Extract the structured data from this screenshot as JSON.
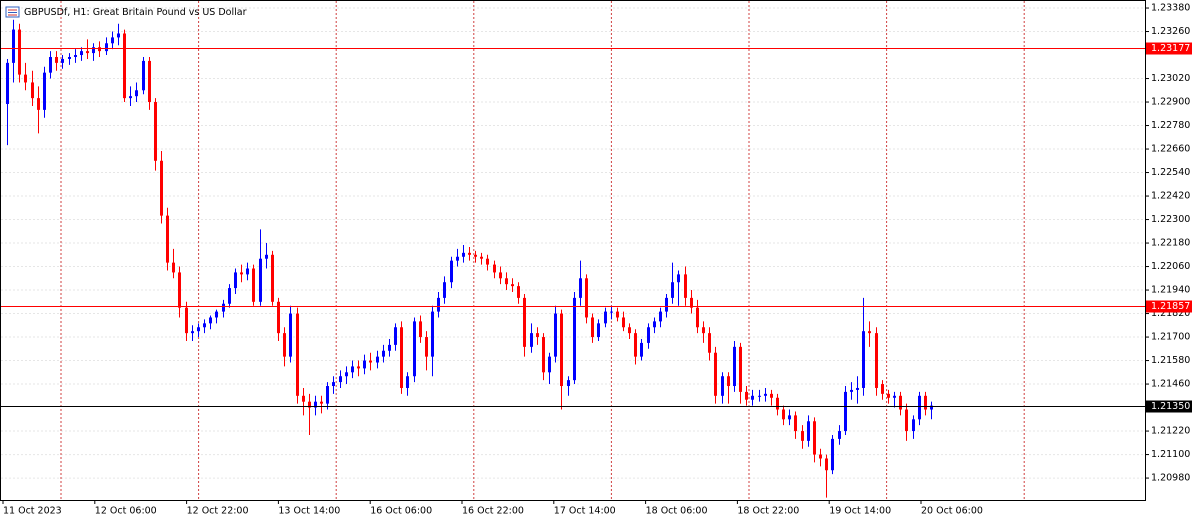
{
  "chart_data": {
    "type": "candlestick",
    "title": "GBPUSDf, H1:  Great Britain Pound vs US Dollar",
    "up_color": "#0000ff",
    "down_color": "#ff0000",
    "ylim": [
      1.20868,
      1.23421
    ],
    "yticks": [
      {
        "value": 1.2338,
        "label": "1.23380"
      },
      {
        "value": 1.2326,
        "label": "1.23260"
      },
      {
        "value": 1.2302,
        "label": "1.23020"
      },
      {
        "value": 1.229,
        "label": "1.22900"
      },
      {
        "value": 1.2278,
        "label": "1.22780"
      },
      {
        "value": 1.2266,
        "label": "1.22660"
      },
      {
        "value": 1.2254,
        "label": "1.22540"
      },
      {
        "value": 1.2242,
        "label": "1.22420"
      },
      {
        "value": 1.223,
        "label": "1.22300"
      },
      {
        "value": 1.2218,
        "label": "1.22180"
      },
      {
        "value": 1.2206,
        "label": "1.22060"
      },
      {
        "value": 1.2194,
        "label": "1.21940"
      },
      {
        "value": 1.2182,
        "label": "1.21820"
      },
      {
        "value": 1.217,
        "label": "1.21700"
      },
      {
        "value": 1.2158,
        "label": "1.21580"
      },
      {
        "value": 1.2146,
        "label": "1.21460"
      },
      {
        "value": 1.2122,
        "label": "1.21220"
      },
      {
        "value": 1.211,
        "label": "1.21100"
      },
      {
        "value": 1.2098,
        "label": "1.20980"
      }
    ],
    "xticks": [
      "11 Oct 2023",
      "12 Oct 06:00",
      "12 Oct 22:00",
      "13 Oct 14:00",
      "16 Oct 06:00",
      "16 Oct 22:00",
      "17 Oct 14:00",
      "18 Oct 06:00",
      "18 Oct 22:00",
      "19 Oct 14:00",
      "20 Oct 06:00"
    ],
    "levels": [
      {
        "value": 1.23177,
        "label": "1.23177",
        "color": "#ff0000"
      },
      {
        "value": 1.21857,
        "label": "1.21857",
        "color": "#ff0000"
      },
      {
        "value": 1.2135,
        "label": "1.21350",
        "color": "#000000"
      }
    ],
    "ohlc": [
      [
        1.2289,
        1.2312,
        1.2268,
        1.231
      ],
      [
        1.231,
        1.2332,
        1.23,
        1.2327
      ],
      [
        1.2327,
        1.233,
        1.23,
        1.2304
      ],
      [
        1.2304,
        1.231,
        1.2296,
        1.23
      ],
      [
        1.23,
        1.2306,
        1.2288,
        1.2292
      ],
      [
        1.2292,
        1.2298,
        1.2274,
        1.2286
      ],
      [
        1.2286,
        1.2308,
        1.2282,
        1.2305
      ],
      [
        1.2305,
        1.2316,
        1.2302,
        1.2313
      ],
      [
        1.2313,
        1.2316,
        1.2306,
        1.231
      ],
      [
        1.231,
        1.2314,
        1.2307,
        1.2312
      ],
      [
        1.2312,
        1.2315,
        1.2309,
        1.2313
      ],
      [
        1.2313,
        1.2317,
        1.231,
        1.2314
      ],
      [
        1.2314,
        1.2318,
        1.2311,
        1.2316
      ],
      [
        1.2316,
        1.2322,
        1.2312,
        1.2315
      ],
      [
        1.2315,
        1.232,
        1.2311,
        1.2318
      ],
      [
        1.2318,
        1.2321,
        1.2313,
        1.2316
      ],
      [
        1.2316,
        1.2323,
        1.2314,
        1.232
      ],
      [
        1.232,
        1.2326,
        1.2317,
        1.2323
      ],
      [
        1.2323,
        1.233,
        1.2319,
        1.2325
      ],
      [
        1.2325,
        1.2327,
        1.229,
        1.2292
      ],
      [
        1.2292,
        1.2298,
        1.2288,
        1.2293
      ],
      [
        1.2293,
        1.23,
        1.229,
        1.2296
      ],
      [
        1.2296,
        1.2313,
        1.2294,
        1.2311
      ],
      [
        1.2311,
        1.2313,
        1.2286,
        1.229
      ],
      [
        1.229,
        1.2292,
        1.2255,
        1.226
      ],
      [
        1.226,
        1.2265,
        1.2228,
        1.2232
      ],
      [
        1.2232,
        1.2236,
        1.2204,
        1.2208
      ],
      [
        1.2208,
        1.2215,
        1.22,
        1.2203
      ],
      [
        1.2203,
        1.2206,
        1.218,
        1.2185
      ],
      [
        1.2185,
        1.2188,
        1.2168,
        1.2172
      ],
      [
        1.2172,
        1.2176,
        1.2168,
        1.2173
      ],
      [
        1.2173,
        1.2177,
        1.217,
        1.2175
      ],
      [
        1.2175,
        1.2179,
        1.2172,
        1.2177
      ],
      [
        1.2177,
        1.2181,
        1.2174,
        1.218
      ],
      [
        1.218,
        1.2184,
        1.2177,
        1.2183
      ],
      [
        1.2183,
        1.2189,
        1.218,
        1.2187
      ],
      [
        1.2187,
        1.2197,
        1.2185,
        1.2195
      ],
      [
        1.2195,
        1.2205,
        1.2192,
        1.2203
      ],
      [
        1.2203,
        1.2207,
        1.2198,
        1.2202
      ],
      [
        1.2202,
        1.2208,
        1.2199,
        1.2205
      ],
      [
        1.2205,
        1.2207,
        1.2186,
        1.2188
      ],
      [
        1.2188,
        1.2225,
        1.2186,
        1.221
      ],
      [
        1.221,
        1.2218,
        1.2205,
        1.2212
      ],
      [
        1.2212,
        1.2214,
        1.2186,
        1.2188
      ],
      [
        1.2188,
        1.219,
        1.2168,
        1.2172
      ],
      [
        1.2172,
        1.2175,
        1.2155,
        1.216
      ],
      [
        1.216,
        1.2186,
        1.2157,
        1.2182
      ],
      [
        1.2182,
        1.2185,
        1.2136,
        1.214
      ],
      [
        1.214,
        1.2144,
        1.213,
        1.2137
      ],
      [
        1.2137,
        1.2141,
        1.212,
        1.2134
      ],
      [
        1.2134,
        1.214,
        1.213,
        1.2137
      ],
      [
        1.2137,
        1.214,
        1.2131,
        1.2136
      ],
      [
        1.2136,
        1.2147,
        1.2133,
        1.2145
      ],
      [
        1.2145,
        1.215,
        1.2141,
        1.2147
      ],
      [
        1.2147,
        1.2153,
        1.2144,
        1.215
      ],
      [
        1.215,
        1.2155,
        1.2146,
        1.2152
      ],
      [
        1.2152,
        1.2158,
        1.2149,
        1.2155
      ],
      [
        1.2155,
        1.2158,
        1.215,
        1.2154
      ],
      [
        1.2154,
        1.2161,
        1.2151,
        1.2158
      ],
      [
        1.2158,
        1.2162,
        1.2153,
        1.2157
      ],
      [
        1.2157,
        1.2163,
        1.2154,
        1.216
      ],
      [
        1.216,
        1.2166,
        1.2157,
        1.2163
      ],
      [
        1.2163,
        1.2169,
        1.216,
        1.2166
      ],
      [
        1.2166,
        1.2177,
        1.2163,
        1.2175
      ],
      [
        1.2175,
        1.2178,
        1.2141,
        1.2144
      ],
      [
        1.2144,
        1.2152,
        1.214,
        1.215
      ],
      [
        1.215,
        1.218,
        1.2147,
        1.2178
      ],
      [
        1.2178,
        1.2181,
        1.2167,
        1.217
      ],
      [
        1.217,
        1.2173,
        1.2153,
        1.216
      ],
      [
        1.216,
        1.2186,
        1.215,
        1.2183
      ],
      [
        1.2183,
        1.2193,
        1.218,
        1.219
      ],
      [
        1.219,
        1.2201,
        1.2187,
        1.2198
      ],
      [
        1.2198,
        1.2211,
        1.2195,
        1.2209
      ],
      [
        1.2209,
        1.2215,
        1.2206,
        1.2211
      ],
      [
        1.2211,
        1.2217,
        1.2208,
        1.2213
      ],
      [
        1.2213,
        1.2216,
        1.2209,
        1.2212
      ],
      [
        1.2212,
        1.2214,
        1.2208,
        1.2211
      ],
      [
        1.2211,
        1.2213,
        1.2207,
        1.221
      ],
      [
        1.221,
        1.2212,
        1.2204,
        1.2207
      ],
      [
        1.2207,
        1.2209,
        1.22,
        1.2203
      ],
      [
        1.2203,
        1.2206,
        1.2197,
        1.22
      ],
      [
        1.22,
        1.2203,
        1.2194,
        1.2197
      ],
      [
        1.2197,
        1.22,
        1.2193,
        1.2196
      ],
      [
        1.2196,
        1.2198,
        1.2187,
        1.219
      ],
      [
        1.219,
        1.2192,
        1.216,
        1.2165
      ],
      [
        1.2165,
        1.2177,
        1.2162,
        1.2172
      ],
      [
        1.2172,
        1.2175,
        1.2166,
        1.217
      ],
      [
        1.217,
        1.2172,
        1.2148,
        1.2152
      ],
      [
        1.2152,
        1.2162,
        1.2146,
        1.216
      ],
      [
        1.216,
        1.2186,
        1.2157,
        1.2182
      ],
      [
        1.2182,
        1.2184,
        1.2133,
        1.2145
      ],
      [
        1.2145,
        1.215,
        1.214,
        1.2148
      ],
      [
        1.2148,
        1.2193,
        1.2146,
        1.219
      ],
      [
        1.219,
        1.2209,
        1.2186,
        1.22
      ],
      [
        1.22,
        1.2202,
        1.2177,
        1.218
      ],
      [
        1.218,
        1.2182,
        1.2167,
        1.217
      ],
      [
        1.217,
        1.2179,
        1.2168,
        1.2177
      ],
      [
        1.2177,
        1.2185,
        1.2175,
        1.2183
      ],
      [
        1.2183,
        1.2186,
        1.2179,
        1.2183
      ],
      [
        1.2183,
        1.2185,
        1.2178,
        1.218
      ],
      [
        1.218,
        1.2183,
        1.2173,
        1.2175
      ],
      [
        1.2175,
        1.2177,
        1.2169,
        1.2172
      ],
      [
        1.2172,
        1.2174,
        1.2156,
        1.216
      ],
      [
        1.216,
        1.2169,
        1.2158,
        1.2167
      ],
      [
        1.2167,
        1.2177,
        1.2164,
        1.2175
      ],
      [
        1.2175,
        1.218,
        1.2172,
        1.2178
      ],
      [
        1.2178,
        1.2185,
        1.2175,
        1.2183
      ],
      [
        1.2183,
        1.2192,
        1.218,
        1.219
      ],
      [
        1.219,
        1.2208,
        1.2187,
        1.2198
      ],
      [
        1.2198,
        1.2204,
        1.2186,
        1.2202
      ],
      [
        1.2202,
        1.2206,
        1.2186,
        1.219
      ],
      [
        1.219,
        1.2194,
        1.2182,
        1.2185
      ],
      [
        1.2185,
        1.2189,
        1.2172,
        1.2175
      ],
      [
        1.2175,
        1.2178,
        1.2167,
        1.2172
      ],
      [
        1.2172,
        1.2175,
        1.2158,
        1.2162
      ],
      [
        1.2162,
        1.2165,
        1.2136,
        1.214
      ],
      [
        1.214,
        1.2152,
        1.2136,
        1.215
      ],
      [
        1.215,
        1.2152,
        1.2136,
        1.2145
      ],
      [
        1.2145,
        1.2168,
        1.2142,
        1.2165
      ],
      [
        1.2165,
        1.2167,
        1.2136,
        1.2142
      ],
      [
        1.2142,
        1.2145,
        1.2135,
        1.2138
      ],
      [
        1.2138,
        1.2143,
        1.2135,
        1.214
      ],
      [
        1.214,
        1.2143,
        1.2137,
        1.214
      ],
      [
        1.214,
        1.2144,
        1.2137,
        1.2141
      ],
      [
        1.2141,
        1.2143,
        1.2135,
        1.2139
      ],
      [
        1.2139,
        1.2141,
        1.213,
        1.2133
      ],
      [
        1.2133,
        1.2135,
        1.2125,
        1.2128
      ],
      [
        1.2128,
        1.2133,
        1.2125,
        1.213
      ],
      [
        1.213,
        1.2132,
        1.2118,
        1.2122
      ],
      [
        1.2122,
        1.2125,
        1.2113,
        1.2117
      ],
      [
        1.2117,
        1.213,
        1.2114,
        1.2127
      ],
      [
        1.2127,
        1.2129,
        1.2106,
        1.211
      ],
      [
        1.211,
        1.2113,
        1.2104,
        1.2108
      ],
      [
        1.2108,
        1.211,
        1.2088,
        1.2102
      ],
      [
        1.2102,
        1.212,
        1.21,
        1.2118
      ],
      [
        1.2118,
        1.2125,
        1.2115,
        1.2122
      ],
      [
        1.2122,
        1.2145,
        1.212,
        1.2142
      ],
      [
        1.2142,
        1.2147,
        1.2138,
        1.2143
      ],
      [
        1.2143,
        1.215,
        1.2136,
        1.2144
      ],
      [
        1.2144,
        1.219,
        1.214,
        1.2173
      ],
      [
        1.2173,
        1.2178,
        1.2165,
        1.2172
      ],
      [
        1.2172,
        1.2175,
        1.214,
        1.2144
      ],
      [
        1.2146,
        1.2148,
        1.2138,
        1.2141
      ],
      [
        1.2141,
        1.2143,
        1.2136,
        1.2139
      ],
      [
        1.2139,
        1.2142,
        1.2134,
        1.214
      ],
      [
        1.214,
        1.2142,
        1.213,
        1.2133
      ],
      [
        1.2133,
        1.2136,
        1.2117,
        1.2122
      ],
      [
        1.2122,
        1.213,
        1.2118,
        1.2128
      ],
      [
        1.2128,
        1.2142,
        1.2125,
        1.214
      ],
      [
        1.214,
        1.2142,
        1.213,
        1.2133
      ],
      [
        1.2133,
        1.2137,
        1.2128,
        1.2135
      ]
    ]
  }
}
